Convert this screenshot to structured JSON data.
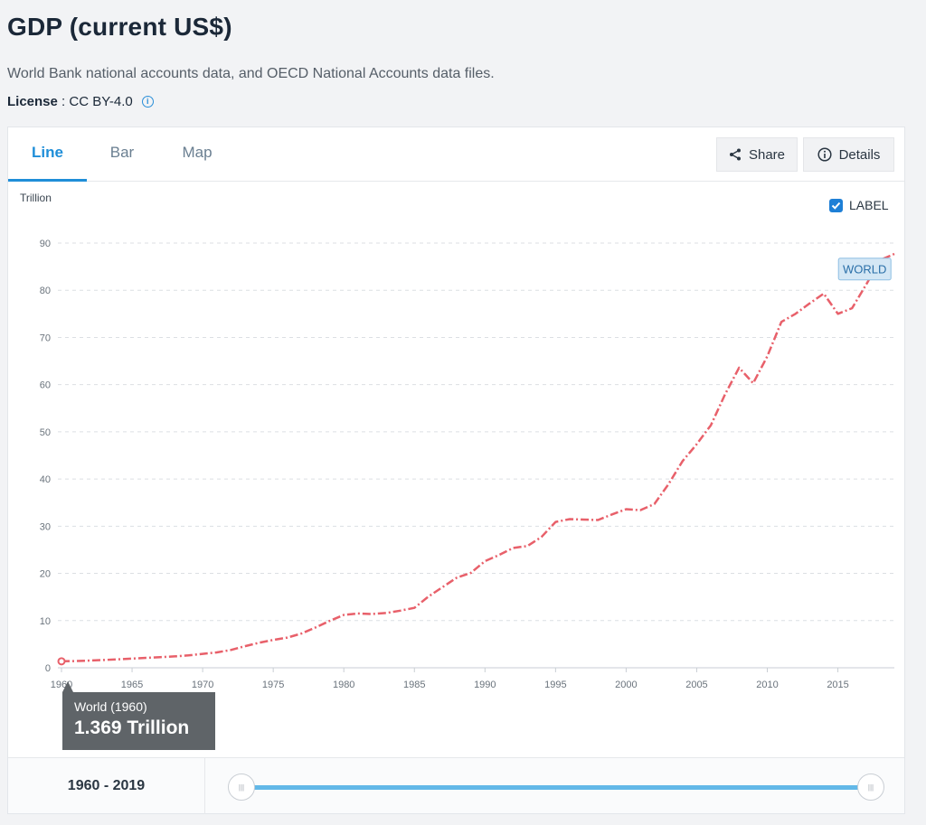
{
  "header": {
    "title": "GDP (current US$)",
    "source": "World Bank national accounts data, and OECD National Accounts data files.",
    "license_key": "License",
    "license_sep": " : ",
    "license_value": "CC BY-4.0"
  },
  "tabs": [
    {
      "label": "Line",
      "active": true
    },
    {
      "label": "Bar",
      "active": false
    },
    {
      "label": "Map",
      "active": false
    }
  ],
  "toolbar": {
    "share_label": "Share",
    "details_label": "Details"
  },
  "label_toggle": {
    "text": "LABEL",
    "checked": true
  },
  "tooltip": {
    "name": "World (1960)",
    "value": "1.369 Trillion"
  },
  "range": {
    "label": "1960 - 2019"
  },
  "colors": {
    "series": "#e8606a",
    "accent": "#1f8ed8"
  },
  "chart_data": {
    "type": "line",
    "title": "GDP (current US$)",
    "unit": "Trillion",
    "xlim": [
      1960,
      2019
    ],
    "ylim": [
      0,
      90
    ],
    "yticks": [
      0,
      10,
      20,
      30,
      40,
      50,
      60,
      70,
      80,
      90
    ],
    "xticks": [
      1960,
      1965,
      1970,
      1975,
      1980,
      1985,
      1990,
      1995,
      2000,
      2005,
      2010,
      2015
    ],
    "grid": true,
    "series": [
      {
        "name": "WORLD",
        "x": [
          1960,
          1961,
          1962,
          1963,
          1964,
          1965,
          1966,
          1967,
          1968,
          1969,
          1970,
          1971,
          1972,
          1973,
          1974,
          1975,
          1976,
          1977,
          1978,
          1979,
          1980,
          1981,
          1982,
          1983,
          1984,
          1985,
          1986,
          1987,
          1988,
          1989,
          1990,
          1991,
          1992,
          1993,
          1994,
          1995,
          1996,
          1997,
          1998,
          1999,
          2000,
          2001,
          2002,
          2003,
          2004,
          2005,
          2006,
          2007,
          2008,
          2009,
          2010,
          2011,
          2012,
          2013,
          2014,
          2015,
          2016,
          2017,
          2018,
          2019
        ],
        "y": [
          1.37,
          1.42,
          1.53,
          1.65,
          1.8,
          1.95,
          2.1,
          2.26,
          2.41,
          2.62,
          2.95,
          3.26,
          3.77,
          4.57,
          5.3,
          5.9,
          6.4,
          7.26,
          8.54,
          9.93,
          11.2,
          11.5,
          11.4,
          11.6,
          12.1,
          12.7,
          15.1,
          17.1,
          19.1,
          20.1,
          22.6,
          23.9,
          25.4,
          25.8,
          27.7,
          30.9,
          31.5,
          31.4,
          31.3,
          32.5,
          33.6,
          33.4,
          34.7,
          38.9,
          43.8,
          47.4,
          51.4,
          57.9,
          63.6,
          60.3,
          66.0,
          73.3,
          75.0,
          77.2,
          79.3,
          75.0,
          76.2,
          81.2,
          86.4,
          87.7
        ]
      }
    ]
  }
}
